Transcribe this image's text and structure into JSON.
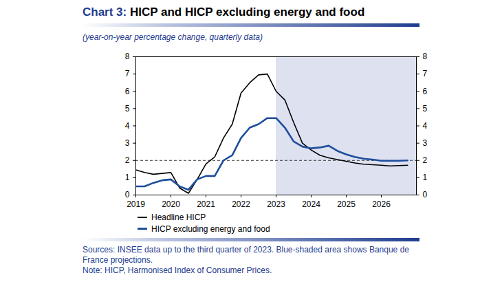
{
  "chart_data": {
    "type": "line",
    "title": "Chart 3: HICP and HICP excluding energy and food",
    "subtitle": "(year-on-year percentage change, quarterly data)",
    "x": [
      2019,
      2019.25,
      2019.5,
      2019.75,
      2020,
      2020.25,
      2020.5,
      2020.75,
      2021,
      2021.25,
      2021.5,
      2021.75,
      2022,
      2022.25,
      2022.5,
      2022.75,
      2023,
      2023.25,
      2023.5,
      2023.75,
      2024,
      2024.25,
      2024.5,
      2024.75,
      2025,
      2025.25,
      2025.5,
      2025.75,
      2026,
      2026.25,
      2026.5,
      2026.75
    ],
    "series": [
      {
        "name": "Headline HICP",
        "color": "#000000",
        "values": [
          1.45,
          1.3,
          1.2,
          1.25,
          1.3,
          0.4,
          0.1,
          0.9,
          1.8,
          2.2,
          3.3,
          4.1,
          5.9,
          6.5,
          6.95,
          7.0,
          6.0,
          5.5,
          4.2,
          3.0,
          2.6,
          2.3,
          2.15,
          2.05,
          1.95,
          1.85,
          1.78,
          1.75,
          1.72,
          1.68,
          1.7,
          1.72
        ]
      },
      {
        "name": "HICP excluding energy and food",
        "color": "#1f4e9c",
        "values": [
          0.5,
          0.5,
          0.7,
          0.85,
          0.9,
          0.5,
          0.3,
          0.9,
          1.1,
          1.1,
          2.0,
          2.3,
          3.3,
          3.9,
          4.1,
          4.45,
          4.45,
          3.9,
          3.1,
          2.8,
          2.7,
          2.75,
          2.85,
          2.55,
          2.35,
          2.2,
          2.1,
          2.05,
          1.98,
          1.98,
          1.98,
          2.0
        ]
      }
    ],
    "xlim": [
      2019,
      2027
    ],
    "xticks": [
      2019,
      2020,
      2021,
      2022,
      2023,
      2024,
      2025,
      2026
    ],
    "ylim": [
      0,
      8
    ],
    "yticks": [
      0,
      1,
      2,
      3,
      4,
      5,
      6,
      7,
      8
    ],
    "y2lim": [
      0,
      8
    ],
    "y2ticks": [
      0,
      1,
      2,
      3,
      4,
      5,
      6,
      7,
      8
    ],
    "grid": false,
    "legend": "bottom",
    "reference_line": {
      "y": 2,
      "line_style": "dashed"
    },
    "shaded_region": {
      "x": [
        2023,
        2027
      ],
      "color": "#dde1f0"
    },
    "caption": [
      "Sources: INSEE data up to the third quarter of 2023. Blue-shaded area shows Banque de France projections.",
      "Note: HICP, Harmonised Index of Consumer Prices."
    ]
  }
}
